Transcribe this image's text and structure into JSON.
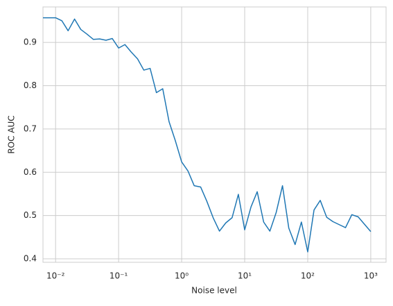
{
  "chart_data": {
    "type": "line",
    "xlabel": "Noise level",
    "ylabel": "ROC AUC",
    "log_x": true,
    "grid": true,
    "color": "#1f77b4",
    "x": [
      0.00631,
      0.00794,
      0.01,
      0.0126,
      0.0158,
      0.02,
      0.0251,
      0.0316,
      0.0398,
      0.0501,
      0.0631,
      0.0794,
      0.1,
      0.126,
      0.158,
      0.2,
      0.251,
      0.316,
      0.398,
      0.501,
      0.631,
      0.794,
      1,
      1.26,
      1.58,
      2,
      2.51,
      3.16,
      3.98,
      5.01,
      6.31,
      7.94,
      10,
      12.6,
      15.8,
      20,
      25.1,
      31.6,
      39.8,
      50.1,
      63.1,
      79.4,
      100,
      126,
      158,
      200,
      251,
      316,
      398,
      501,
      631,
      794,
      1000
    ],
    "values": [
      0.957,
      0.957,
      0.957,
      0.95,
      0.927,
      0.954,
      0.93,
      0.919,
      0.907,
      0.908,
      0.905,
      0.909,
      0.887,
      0.895,
      0.878,
      0.862,
      0.836,
      0.84,
      0.784,
      0.793,
      0.717,
      0.673,
      0.624,
      0.603,
      0.569,
      0.566,
      0.533,
      0.495,
      0.464,
      0.483,
      0.495,
      0.549,
      0.467,
      0.52,
      0.555,
      0.485,
      0.464,
      0.507,
      0.569,
      0.471,
      0.433,
      0.485,
      0.416,
      0.513,
      0.535,
      0.496,
      0.486,
      0.479,
      0.472,
      0.502,
      0.497,
      0.48,
      0.463
    ],
    "xlim": [
      0.00631,
      1750
    ],
    "ylim": [
      0.392,
      0.982
    ],
    "xticks": [
      {
        "value": 0.01,
        "label": "10⁻²"
      },
      {
        "value": 0.1,
        "label": "10⁻¹"
      },
      {
        "value": 1,
        "label": "10⁰"
      },
      {
        "value": 10,
        "label": "10¹"
      },
      {
        "value": 100,
        "label": "10²"
      },
      {
        "value": 1000,
        "label": "10³"
      }
    ],
    "yticks": [
      0.4,
      0.5,
      0.6,
      0.7,
      0.8,
      0.9
    ]
  }
}
